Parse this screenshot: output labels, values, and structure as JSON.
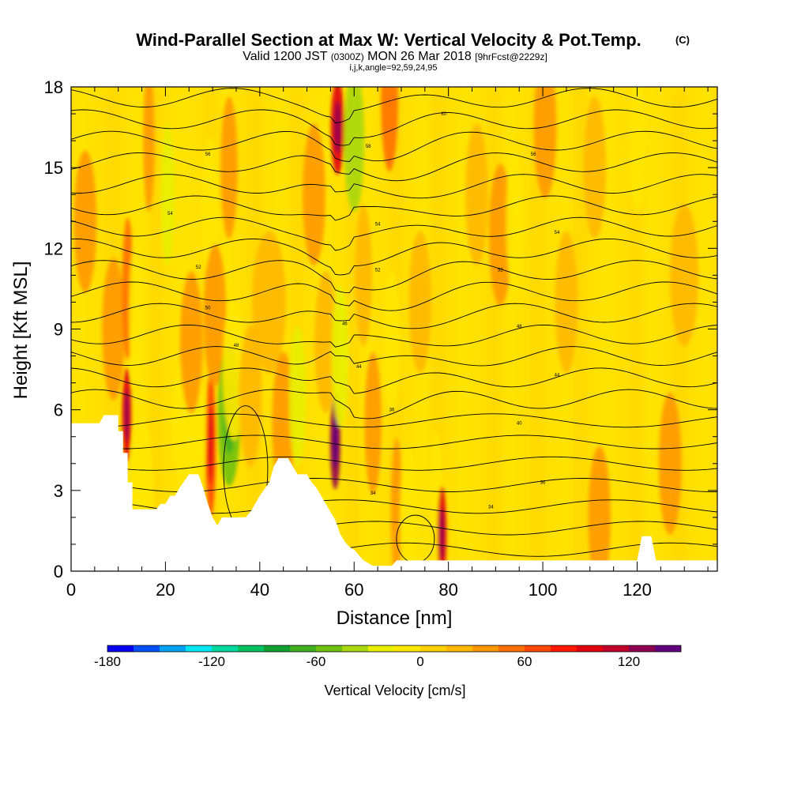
{
  "chart_data": {
    "type": "heatmap",
    "title": "Wind-Parallel Section at Max W: Vertical Velocity & Pot.Temp.",
    "title_unit": "(C)",
    "subtitle_pre": "Valid 1200 JST",
    "subtitle_utc": "(0300Z)",
    "subtitle_date": "MON 26 Mar 2018",
    "subtitle_fcst": "[9hrFcst@2229z]",
    "subtitle2": "i,j,k,angle=92,59,24,95",
    "xlabel": "Distance [nm]",
    "ylabel": "Height [Kft MSL]",
    "xlim": [
      0,
      137
    ],
    "ylim": [
      0,
      18
    ],
    "xticks": [
      "0",
      "20",
      "40",
      "60",
      "80",
      "100",
      "120"
    ],
    "yticks": [
      "0",
      "3",
      "6",
      "9",
      "12",
      "15",
      "18"
    ],
    "colorbar": {
      "label": "Vertical Velocity [cm/s]",
      "ticks": [
        "-180",
        "-120",
        "-60",
        "0",
        "60",
        "120"
      ],
      "levels": [
        -180,
        -165,
        -150,
        -135,
        -120,
        -105,
        -90,
        -75,
        -60,
        -45,
        -30,
        -15,
        0,
        15,
        30,
        45,
        60,
        75,
        90,
        105,
        120,
        135,
        150
      ],
      "colors": [
        "#0a00f0",
        "#0050f5",
        "#00a0f5",
        "#00e5f0",
        "#00d8a0",
        "#00c060",
        "#10a030",
        "#40b020",
        "#70c010",
        "#a8d810",
        "#e8f000",
        "#ffe800",
        "#ffd000",
        "#ffb800",
        "#ff9800",
        "#ff7000",
        "#ff4800",
        "#ff1800",
        "#e00010",
        "#c0002a",
        "#900050",
        "#60007e"
      ]
    },
    "terrain_kft": [
      [
        0,
        5.5
      ],
      [
        6,
        5.5
      ],
      [
        7,
        5.8
      ],
      [
        10,
        5.8
      ],
      [
        10,
        5.2
      ],
      [
        11,
        5.2
      ],
      [
        11,
        4.4
      ],
      [
        12,
        4.4
      ],
      [
        12,
        3.3
      ],
      [
        13,
        3.3
      ],
      [
        13,
        2.3
      ],
      [
        18,
        2.3
      ],
      [
        19,
        2.5
      ],
      [
        20,
        2.5
      ],
      [
        21,
        2.8
      ],
      [
        22,
        2.8
      ],
      [
        23,
        3.1
      ],
      [
        25,
        3.6
      ],
      [
        27,
        3.6
      ],
      [
        28,
        3.1
      ],
      [
        29,
        2.5
      ],
      [
        30,
        2.0
      ],
      [
        31,
        1.7
      ],
      [
        32,
        2.0
      ],
      [
        33,
        2.0
      ],
      [
        37,
        2.0
      ],
      [
        38,
        2.2
      ],
      [
        39,
        2.5
      ],
      [
        40,
        2.8
      ],
      [
        42,
        3.3
      ],
      [
        43,
        3.9
      ],
      [
        44,
        4.2
      ],
      [
        46,
        4.2
      ],
      [
        47,
        3.9
      ],
      [
        48,
        3.6
      ],
      [
        50,
        3.6
      ],
      [
        51,
        3.3
      ],
      [
        52,
        3.1
      ],
      [
        53,
        2.8
      ],
      [
        54,
        2.5
      ],
      [
        55,
        2.2
      ],
      [
        56,
        1.9
      ],
      [
        57,
        1.4
      ],
      [
        58,
        1.1
      ],
      [
        59,
        0.9
      ],
      [
        60,
        0.8
      ],
      [
        61,
        0.6
      ],
      [
        62,
        0.4
      ],
      [
        63,
        0.3
      ],
      [
        64,
        0.2
      ],
      [
        68,
        0.2
      ],
      [
        69,
        0.4
      ],
      [
        120,
        0.4
      ],
      [
        121,
        1.3
      ],
      [
        123,
        1.3
      ],
      [
        124,
        0.4
      ],
      [
        137,
        0.4
      ]
    ],
    "vertical_velocity_cells": [
      {
        "x": 3,
        "y": 13,
        "w": 2,
        "v": 30
      },
      {
        "x": 9,
        "y": 9,
        "w": 2,
        "v": 30
      },
      {
        "x": 11.8,
        "y": 5.8,
        "w": 0.8,
        "v": 90
      },
      {
        "x": 12,
        "y": 10.5,
        "w": 1,
        "v": 45
      },
      {
        "x": 13.5,
        "y": 9.5,
        "w": 1,
        "v": -15
      },
      {
        "x": 15,
        "y": 3.0,
        "w": 2,
        "v": -15
      },
      {
        "x": 16.5,
        "y": 16,
        "w": 1,
        "v": 30
      },
      {
        "x": 20.5,
        "y": 14,
        "w": 1.2,
        "v": -30
      },
      {
        "x": 25,
        "y": 5.5,
        "w": 3,
        "v": -15
      },
      {
        "x": 25.5,
        "y": 8.5,
        "w": 2,
        "v": 30
      },
      {
        "x": 29.6,
        "y": 4.7,
        "w": 0.9,
        "v": 60
      },
      {
        "x": 29.5,
        "y": 13.5,
        "w": 1.5,
        "v": -15
      },
      {
        "x": 30.5,
        "y": 9.5,
        "w": 2,
        "v": 30
      },
      {
        "x": 33.5,
        "y": 5.8,
        "w": 2,
        "v": -60
      },
      {
        "x": 33.5,
        "y": 15,
        "w": 1.5,
        "v": 30
      },
      {
        "x": 34.5,
        "y": 7.5,
        "w": 2,
        "v": -15
      },
      {
        "x": 38,
        "y": 6.5,
        "w": 2,
        "v": 15
      },
      {
        "x": 42,
        "y": 10,
        "w": 3,
        "v": 15
      },
      {
        "x": 45,
        "y": 5.5,
        "w": 2,
        "v": 30
      },
      {
        "x": 48,
        "y": 6.5,
        "w": 1.5,
        "v": -30
      },
      {
        "x": 51.5,
        "y": 14,
        "w": 2,
        "v": 30
      },
      {
        "x": 54,
        "y": 8.5,
        "w": 2,
        "v": 15
      },
      {
        "x": 56.0,
        "y": 4.8,
        "w": 0.9,
        "v": 120
      },
      {
        "x": 56.5,
        "y": 16.5,
        "w": 1.2,
        "v": 90
      },
      {
        "x": 57,
        "y": 8.0,
        "w": 1.5,
        "v": -30
      },
      {
        "x": 60,
        "y": 16.0,
        "w": 1.8,
        "v": -45
      },
      {
        "x": 62,
        "y": 11,
        "w": 1.5,
        "v": 15
      },
      {
        "x": 64,
        "y": 5.5,
        "w": 1.5,
        "v": 30
      },
      {
        "x": 67.5,
        "y": 17.5,
        "w": 1.5,
        "v": 45
      },
      {
        "x": 68,
        "y": 8.5,
        "w": 1.5,
        "v": -15
      },
      {
        "x": 69,
        "y": 2.3,
        "w": 1,
        "v": 30
      },
      {
        "x": 71.5,
        "y": 2.0,
        "w": 1.5,
        "v": -15
      },
      {
        "x": 74,
        "y": 10,
        "w": 2,
        "v": 15
      },
      {
        "x": 77.5,
        "y": 2.5,
        "w": 1.2,
        "v": -15
      },
      {
        "x": 78.6,
        "y": 1.4,
        "w": 0.8,
        "v": 90
      },
      {
        "x": 86,
        "y": 14,
        "w": 2,
        "v": 15
      },
      {
        "x": 91,
        "y": 12.5,
        "w": 2,
        "v": 30
      },
      {
        "x": 94,
        "y": 13,
        "w": 1.5,
        "v": -15
      },
      {
        "x": 100.5,
        "y": 16.5,
        "w": 2,
        "v": 30
      },
      {
        "x": 105,
        "y": 10,
        "w": 2,
        "v": 15
      },
      {
        "x": 111,
        "y": 15,
        "w": 2,
        "v": 15
      },
      {
        "x": 112,
        "y": 2.0,
        "w": 2,
        "v": 30
      },
      {
        "x": 120,
        "y": 16,
        "w": 1.5,
        "v": -15
      },
      {
        "x": 127,
        "y": 4.0,
        "w": 2,
        "v": 30
      },
      {
        "x": 130,
        "y": 11,
        "w": 2.5,
        "v": 15
      }
    ],
    "theta_contour_labels": [
      {
        "x": 29.0,
        "y": 15.5,
        "text": "56"
      },
      {
        "x": 21.0,
        "y": 13.3,
        "text": "54"
      },
      {
        "x": 27.0,
        "y": 11.3,
        "text": "52"
      },
      {
        "x": 29.0,
        "y": 9.8,
        "text": "50"
      },
      {
        "x": 35.0,
        "y": 8.4,
        "text": "48"
      },
      {
        "x": 58.0,
        "y": 9.2,
        "text": "46"
      },
      {
        "x": 61.0,
        "y": 7.6,
        "text": "44"
      },
      {
        "x": 68.0,
        "y": 6.0,
        "text": "36"
      },
      {
        "x": 64.0,
        "y": 2.9,
        "text": "34"
      },
      {
        "x": 79.0,
        "y": 17.0,
        "text": "60"
      },
      {
        "x": 63.0,
        "y": 15.8,
        "text": "58"
      },
      {
        "x": 65.0,
        "y": 12.9,
        "text": "54"
      },
      {
        "x": 65.0,
        "y": 11.2,
        "text": "52"
      },
      {
        "x": 98.0,
        "y": 15.5,
        "text": "56"
      },
      {
        "x": 103.0,
        "y": 12.6,
        "text": "54"
      },
      {
        "x": 91.0,
        "y": 11.2,
        "text": "52"
      },
      {
        "x": 95.0,
        "y": 9.1,
        "text": "48"
      },
      {
        "x": 103.0,
        "y": 7.3,
        "text": "44"
      },
      {
        "x": 95.0,
        "y": 5.5,
        "text": "40"
      },
      {
        "x": 100.0,
        "y": 3.3,
        "text": "36"
      },
      {
        "x": 89.0,
        "y": 2.4,
        "text": "34"
      }
    ]
  }
}
